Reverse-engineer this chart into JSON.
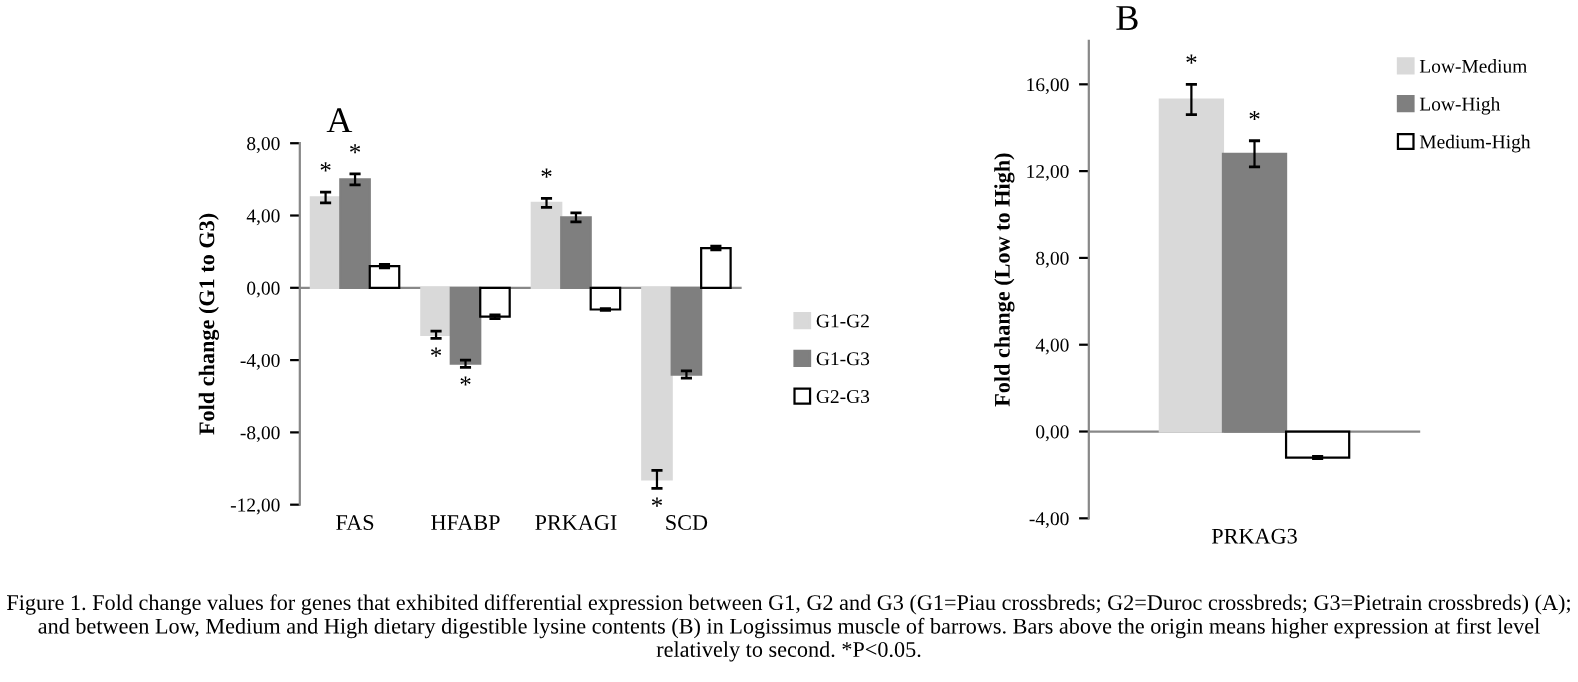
{
  "chart_data": [
    {
      "type": "bar",
      "title": "A",
      "ylabel": "Fold change (G1 to G3)",
      "categories": [
        "FAS",
        "HFABP",
        "PRKAGI",
        "SCD"
      ],
      "series": [
        {
          "name": "G1-G2",
          "color": "#d9d9d9",
          "values": [
            5.0,
            -2.6,
            4.7,
            -10.6
          ],
          "errors": [
            0.3,
            0.2,
            0.25,
            0.5
          ],
          "value_labels": [
            "*",
            "*",
            "*",
            "*"
          ]
        },
        {
          "name": "G1-G3",
          "color": "#7f7f7f",
          "values": [
            6.0,
            -4.2,
            3.9,
            -4.8
          ],
          "errors": [
            0.3,
            0.2,
            0.25,
            0.2
          ],
          "value_labels": [
            "*",
            "*",
            null,
            null
          ]
        },
        {
          "name": "G2-G3",
          "color": "#ffffff",
          "values": [
            1.2,
            -1.6,
            -1.2,
            2.2
          ],
          "errors": [
            0.1,
            0.1,
            0.05,
            0.1
          ]
        }
      ],
      "ylim": [
        -12,
        8
      ],
      "yticks": [
        {
          "value": -12,
          "label": "-12,00"
        },
        {
          "value": -8,
          "label": "-8,00"
        },
        {
          "value": -4,
          "label": "-4,00"
        },
        {
          "value": 0,
          "label": "0,00"
        },
        {
          "value": 4,
          "label": "4,00"
        },
        {
          "value": 8,
          "label": "8,00"
        }
      ],
      "legend": "right",
      "annotations": [
        "Figure 1. Fold change values for genes that exhibited differential expression between G1, G2 and G3 (G1=Piau crossbreds; G2=Duroc crossbreds; G3=Pietrain crossbreds) (A); and between Low, Medium and High dietary digestible lysine contents (B) in Logissimus muscle of barrows. Bars above the origin means higher expression at first level relatively to second. *P<0.05."
      ]
    },
    {
      "type": "bar",
      "title": "B",
      "ylabel": "Fold change (Low to High)",
      "categories": [
        "PRKAG3"
      ],
      "series": [
        {
          "name": "Low-Medium",
          "color": "#d9d9d9",
          "values": [
            15.3
          ],
          "errors": [
            0.7
          ],
          "value_labels": [
            "*"
          ]
        },
        {
          "name": "Low-High",
          "color": "#7f7f7f",
          "values": [
            12.8
          ],
          "errors": [
            0.6
          ],
          "value_labels": [
            "*"
          ]
        },
        {
          "name": "Medium-High",
          "color": "#ffffff",
          "values": [
            -1.2
          ],
          "errors": [
            0.05
          ]
        }
      ],
      "ylim": [
        -4,
        18
      ],
      "yticks": [
        {
          "value": -4,
          "label": "-4,00"
        },
        {
          "value": 0,
          "label": "0,00"
        },
        {
          "value": 4,
          "label": "4,00"
        },
        {
          "value": 8,
          "label": "8,00"
        },
        {
          "value": 12,
          "label": "12,00"
        },
        {
          "value": 16,
          "label": "16,00"
        }
      ],
      "legend": "top right"
    }
  ]
}
